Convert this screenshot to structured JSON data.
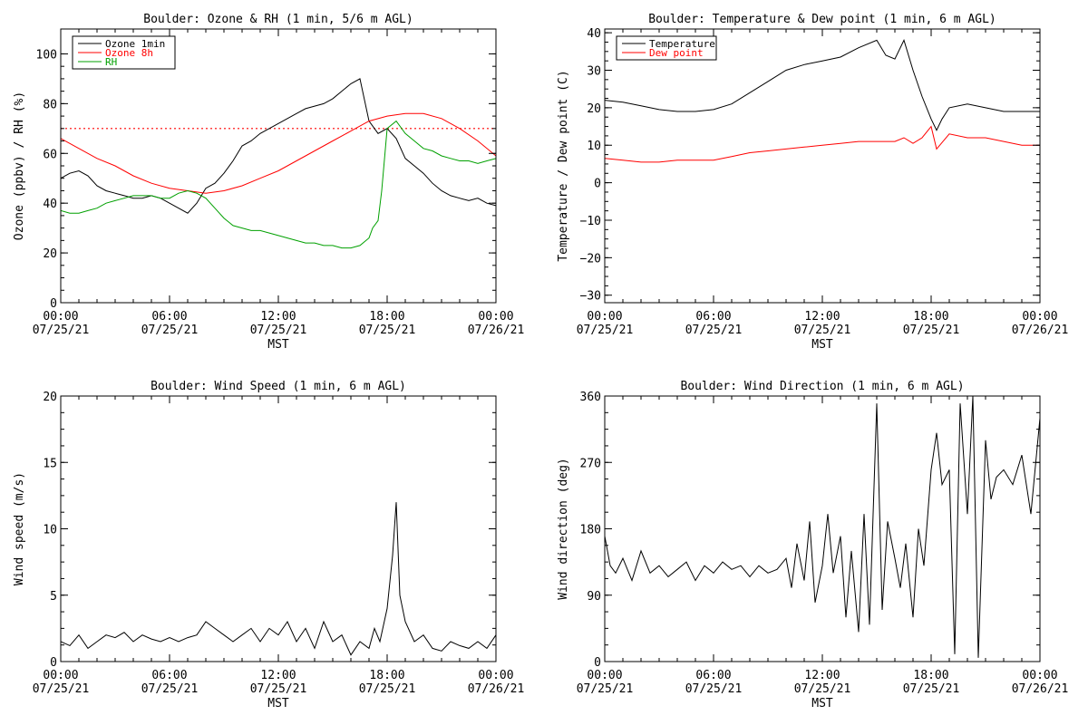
{
  "chart_data": [
    {
      "type": "line",
      "title": "Boulder: Ozone & RH (1 min, 5/6 m AGL)",
      "ylabel": "Ozone (ppbv) / RH (%)",
      "xlabel": "MST",
      "xlim": [
        "07/25/21 00:00",
        "07/26/21 00:00"
      ],
      "ylim": [
        0,
        110
      ],
      "xtick_labels": [
        [
          "00:00",
          "07/25/21"
        ],
        [
          "06:00",
          "07/25/21"
        ],
        [
          "12:00",
          "07/25/21"
        ],
        [
          "18:00",
          "07/25/21"
        ],
        [
          "00:00",
          "07/26/21"
        ]
      ],
      "xticks": [
        0,
        6,
        12,
        18,
        24
      ],
      "ytick_labels": [
        "0",
        "20",
        "40",
        "60",
        "80",
        "100"
      ],
      "yticks": [
        0,
        20,
        40,
        60,
        80,
        100
      ],
      "legend": "top-left",
      "reference_line": {
        "y": 70,
        "color": "#ff0000",
        "style": "dotted"
      },
      "series": [
        {
          "name": "Ozone 1min",
          "color": "#000000",
          "x": [
            0,
            0.5,
            1,
            1.5,
            2,
            2.5,
            3,
            3.5,
            4,
            4.5,
            5,
            5.5,
            6,
            6.5,
            7,
            7.5,
            8,
            8.5,
            9,
            9.5,
            10,
            10.5,
            11,
            11.5,
            12,
            12.5,
            13,
            13.5,
            14,
            14.5,
            15,
            15.5,
            16,
            16.5,
            17,
            17.5,
            18,
            18.5,
            19,
            19.5,
            20,
            20.5,
            21,
            21.5,
            22,
            22.5,
            23,
            23.5,
            24
          ],
          "y": [
            50,
            52,
            53,
            51,
            47,
            45,
            44,
            43,
            42,
            42,
            43,
            42,
            40,
            38,
            36,
            40,
            46,
            48,
            52,
            57,
            63,
            65,
            68,
            70,
            72,
            74,
            76,
            78,
            79,
            80,
            82,
            85,
            88,
            90,
            73,
            68,
            70,
            66,
            58,
            55,
            52,
            48,
            45,
            43,
            42,
            41,
            42,
            40,
            39
          ]
        },
        {
          "name": "Ozone 8h",
          "color": "#ff0000",
          "x": [
            0,
            1,
            2,
            3,
            4,
            5,
            6,
            7,
            8,
            9,
            10,
            11,
            12,
            13,
            14,
            15,
            16,
            17,
            18,
            19,
            20,
            21,
            22,
            23,
            24
          ],
          "y": [
            66,
            62,
            58,
            55,
            51,
            48,
            46,
            45,
            44,
            45,
            47,
            50,
            53,
            57,
            61,
            65,
            69,
            73,
            75,
            76,
            76,
            74,
            70,
            65,
            59
          ]
        },
        {
          "name": "RH",
          "color": "#00a000",
          "x": [
            0,
            0.5,
            1,
            1.5,
            2,
            2.5,
            3,
            3.5,
            4,
            4.5,
            5,
            5.5,
            6,
            6.5,
            7,
            7.5,
            8,
            8.5,
            9,
            9.5,
            10,
            10.5,
            11,
            11.5,
            12,
            12.5,
            13,
            13.5,
            14,
            14.5,
            15,
            15.5,
            16,
            16.5,
            17,
            17.2,
            17.5,
            17.7,
            18,
            18.5,
            19,
            19.5,
            20,
            20.5,
            21,
            21.5,
            22,
            22.5,
            23,
            23.5,
            24
          ],
          "y": [
            37,
            36,
            36,
            37,
            38,
            40,
            41,
            42,
            43,
            43,
            43,
            42,
            42,
            44,
            45,
            44,
            42,
            38,
            34,
            31,
            30,
            29,
            29,
            28,
            27,
            26,
            25,
            24,
            24,
            23,
            23,
            22,
            22,
            23,
            26,
            30,
            33,
            45,
            70,
            73,
            68,
            65,
            62,
            61,
            59,
            58,
            57,
            57,
            56,
            57,
            58
          ]
        }
      ]
    },
    {
      "type": "line",
      "title": "Boulder: Temperature & Dew point (1 min, 6 m AGL)",
      "ylabel": "Temperature / Dew point (C)",
      "xlabel": "MST",
      "xlim": [
        "07/25/21 00:00",
        "07/26/21 00:00"
      ],
      "ylim": [
        -32,
        41
      ],
      "xtick_labels": [
        [
          "00:00",
          "07/25/21"
        ],
        [
          "06:00",
          "07/25/21"
        ],
        [
          "12:00",
          "07/25/21"
        ],
        [
          "18:00",
          "07/25/21"
        ],
        [
          "00:00",
          "07/26/21"
        ]
      ],
      "xticks": [
        0,
        6,
        12,
        18,
        24
      ],
      "ytick_labels": [
        "40",
        "30",
        "20",
        "10",
        "0",
        "−10",
        "−20",
        "−30"
      ],
      "yticks": [
        40,
        30,
        20,
        10,
        0,
        -10,
        -20,
        -30
      ],
      "legend": "top-left",
      "series": [
        {
          "name": "Temperature",
          "color": "#000000",
          "x": [
            0,
            1,
            2,
            3,
            4,
            5,
            6,
            7,
            8,
            9,
            10,
            11,
            12,
            13,
            14,
            15,
            15.5,
            16,
            16.5,
            17,
            17.5,
            18,
            18.3,
            18.6,
            19,
            20,
            21,
            22,
            23,
            24
          ],
          "y": [
            22,
            21.5,
            20.5,
            19.5,
            19,
            19,
            19.5,
            21,
            24,
            27,
            30,
            31.5,
            32.5,
            33.5,
            36,
            38,
            34,
            33,
            38,
            30,
            23,
            17,
            14,
            17,
            20,
            21,
            20,
            19,
            19,
            19
          ]
        },
        {
          "name": "Dew point",
          "color": "#ff0000",
          "x": [
            0,
            1,
            2,
            3,
            4,
            5,
            6,
            7,
            8,
            9,
            10,
            11,
            12,
            13,
            14,
            15,
            16,
            16.5,
            17,
            17.5,
            18,
            18.3,
            19,
            20,
            21,
            22,
            23,
            24
          ],
          "y": [
            6.5,
            6,
            5.5,
            5.5,
            6,
            6,
            6,
            7,
            8,
            8.5,
            9,
            9.5,
            10,
            10.5,
            11,
            11,
            11,
            12,
            10.5,
            12,
            15,
            9,
            13,
            12,
            12,
            11,
            10,
            10
          ]
        }
      ]
    },
    {
      "type": "line",
      "title": "Boulder: Wind Speed (1 min, 6 m AGL)",
      "ylabel": "Wind speed (m/s)",
      "xlabel": "MST",
      "xlim": [
        "07/25/21 00:00",
        "07/26/21 00:00"
      ],
      "ylim": [
        0,
        20
      ],
      "xtick_labels": [
        [
          "00:00",
          "07/25/21"
        ],
        [
          "06:00",
          "07/25/21"
        ],
        [
          "12:00",
          "07/25/21"
        ],
        [
          "18:00",
          "07/25/21"
        ],
        [
          "00:00",
          "07/26/21"
        ]
      ],
      "xticks": [
        0,
        6,
        12,
        18,
        24
      ],
      "ytick_labels": [
        "0",
        "5",
        "10",
        "15",
        "20"
      ],
      "yticks": [
        0,
        5,
        10,
        15,
        20
      ],
      "series": [
        {
          "name": "",
          "color": "#000000",
          "x": [
            0,
            0.5,
            1,
            1.5,
            2,
            2.5,
            3,
            3.5,
            4,
            4.5,
            5,
            5.5,
            6,
            6.5,
            7,
            7.5,
            8,
            8.5,
            9,
            9.5,
            10,
            10.5,
            11,
            11.5,
            12,
            12.5,
            13,
            13.5,
            14,
            14.5,
            15,
            15.5,
            16,
            16.5,
            17,
            17.3,
            17.6,
            18,
            18.3,
            18.5,
            18.7,
            19,
            19.5,
            20,
            20.5,
            21,
            21.5,
            22,
            22.5,
            23,
            23.5,
            24
          ],
          "y": [
            1.5,
            1.2,
            2,
            1,
            1.5,
            2,
            1.8,
            2.2,
            1.5,
            2,
            1.7,
            1.5,
            1.8,
            1.5,
            1.8,
            2,
            3,
            2.5,
            2,
            1.5,
            2,
            2.5,
            1.5,
            2.5,
            2,
            3,
            1.5,
            2.5,
            1,
            3,
            1.5,
            2,
            0.5,
            1.5,
            1,
            2.5,
            1.5,
            4,
            8,
            12,
            5,
            3,
            1.5,
            2,
            1,
            0.8,
            1.5,
            1.2,
            1,
            1.5,
            1,
            2
          ]
        }
      ]
    },
    {
      "type": "line",
      "title": "Boulder: Wind Direction (1 min, 6 m AGL)",
      "ylabel": "Wind direction (deg)",
      "xlabel": "MST",
      "xlim": [
        "07/25/21 00:00",
        "07/26/21 00:00"
      ],
      "ylim": [
        0,
        360
      ],
      "xtick_labels": [
        [
          "00:00",
          "07/25/21"
        ],
        [
          "06:00",
          "07/25/21"
        ],
        [
          "12:00",
          "07/25/21"
        ],
        [
          "18:00",
          "07/25/21"
        ],
        [
          "00:00",
          "07/26/21"
        ]
      ],
      "xticks": [
        0,
        6,
        12,
        18,
        24
      ],
      "ytick_labels": [
        "0",
        "90",
        "180",
        "270",
        "360"
      ],
      "yticks": [
        0,
        90,
        180,
        270,
        360
      ],
      "series": [
        {
          "name": "",
          "color": "#000000",
          "x": [
            0,
            0.3,
            0.6,
            1,
            1.5,
            2,
            2.5,
            3,
            3.5,
            4,
            4.5,
            5,
            5.5,
            6,
            6.5,
            7,
            7.5,
            8,
            8.5,
            9,
            9.5,
            10,
            10.3,
            10.6,
            11,
            11.3,
            11.6,
            12,
            12.3,
            12.6,
            13,
            13.3,
            13.6,
            14,
            14.3,
            14.6,
            15,
            15.3,
            15.6,
            16,
            16.3,
            16.6,
            17,
            17.3,
            17.6,
            18,
            18.3,
            18.6,
            19,
            19.3,
            19.6,
            20,
            20.3,
            20.6,
            21,
            21.3,
            21.6,
            22,
            22.5,
            23,
            23.5,
            24
          ],
          "y": [
            170,
            130,
            120,
            140,
            110,
            150,
            120,
            130,
            115,
            125,
            135,
            110,
            130,
            120,
            135,
            125,
            130,
            115,
            130,
            120,
            125,
            140,
            100,
            160,
            110,
            190,
            80,
            130,
            200,
            120,
            170,
            60,
            150,
            40,
            200,
            50,
            350,
            70,
            190,
            140,
            100,
            160,
            60,
            180,
            130,
            260,
            310,
            240,
            260,
            10,
            350,
            200,
            360,
            5,
            300,
            220,
            250,
            260,
            240,
            280,
            200,
            330
          ]
        }
      ]
    }
  ]
}
